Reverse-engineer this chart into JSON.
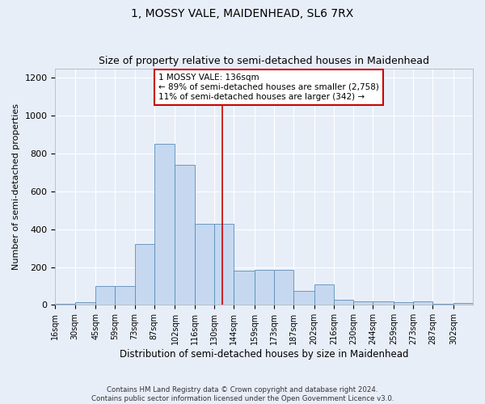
{
  "title": "1, MOSSY VALE, MAIDENHEAD, SL6 7RX",
  "subtitle": "Size of property relative to semi-detached houses in Maidenhead",
  "xlabel": "Distribution of semi-detached houses by size in Maidenhead",
  "ylabel": "Number of semi-detached properties",
  "footer": "Contains HM Land Registry data © Crown copyright and database right 2024.\nContains public sector information licensed under the Open Government Licence v3.0.",
  "bin_labels": [
    "16sqm",
    "30sqm",
    "45sqm",
    "59sqm",
    "73sqm",
    "87sqm",
    "102sqm",
    "116sqm",
    "130sqm",
    "144sqm",
    "159sqm",
    "173sqm",
    "187sqm",
    "202sqm",
    "216sqm",
    "230sqm",
    "244sqm",
    "259sqm",
    "273sqm",
    "287sqm",
    "302sqm"
  ],
  "bin_edges": [
    16,
    30,
    45,
    59,
    73,
    87,
    102,
    116,
    130,
    144,
    159,
    173,
    187,
    202,
    216,
    230,
    244,
    259,
    273,
    287,
    302
  ],
  "heights": [
    5,
    15,
    100,
    100,
    320,
    850,
    740,
    430,
    430,
    180,
    185,
    185,
    75,
    110,
    25,
    20,
    20,
    15,
    20,
    5,
    10
  ],
  "bar_color": "#c5d8f0",
  "bar_edge_color": "#5b8db8",
  "property_value": 136,
  "vline_color": "#cc0000",
  "annotation_text": "1 MOSSY VALE: 136sqm\n← 89% of semi-detached houses are smaller (2,758)\n11% of semi-detached houses are larger (342) →",
  "annotation_box_edgecolor": "#cc0000",
  "ylim": [
    0,
    1250
  ],
  "xlim": [
    16,
    316
  ],
  "background_color": "#e8eef8",
  "grid_color": "#ffffff",
  "title_fontsize": 10,
  "subtitle_fontsize": 9,
  "ylabel_fontsize": 8,
  "xlabel_fontsize": 8.5,
  "annot_fontsize": 7.5,
  "tick_fontsize": 7
}
